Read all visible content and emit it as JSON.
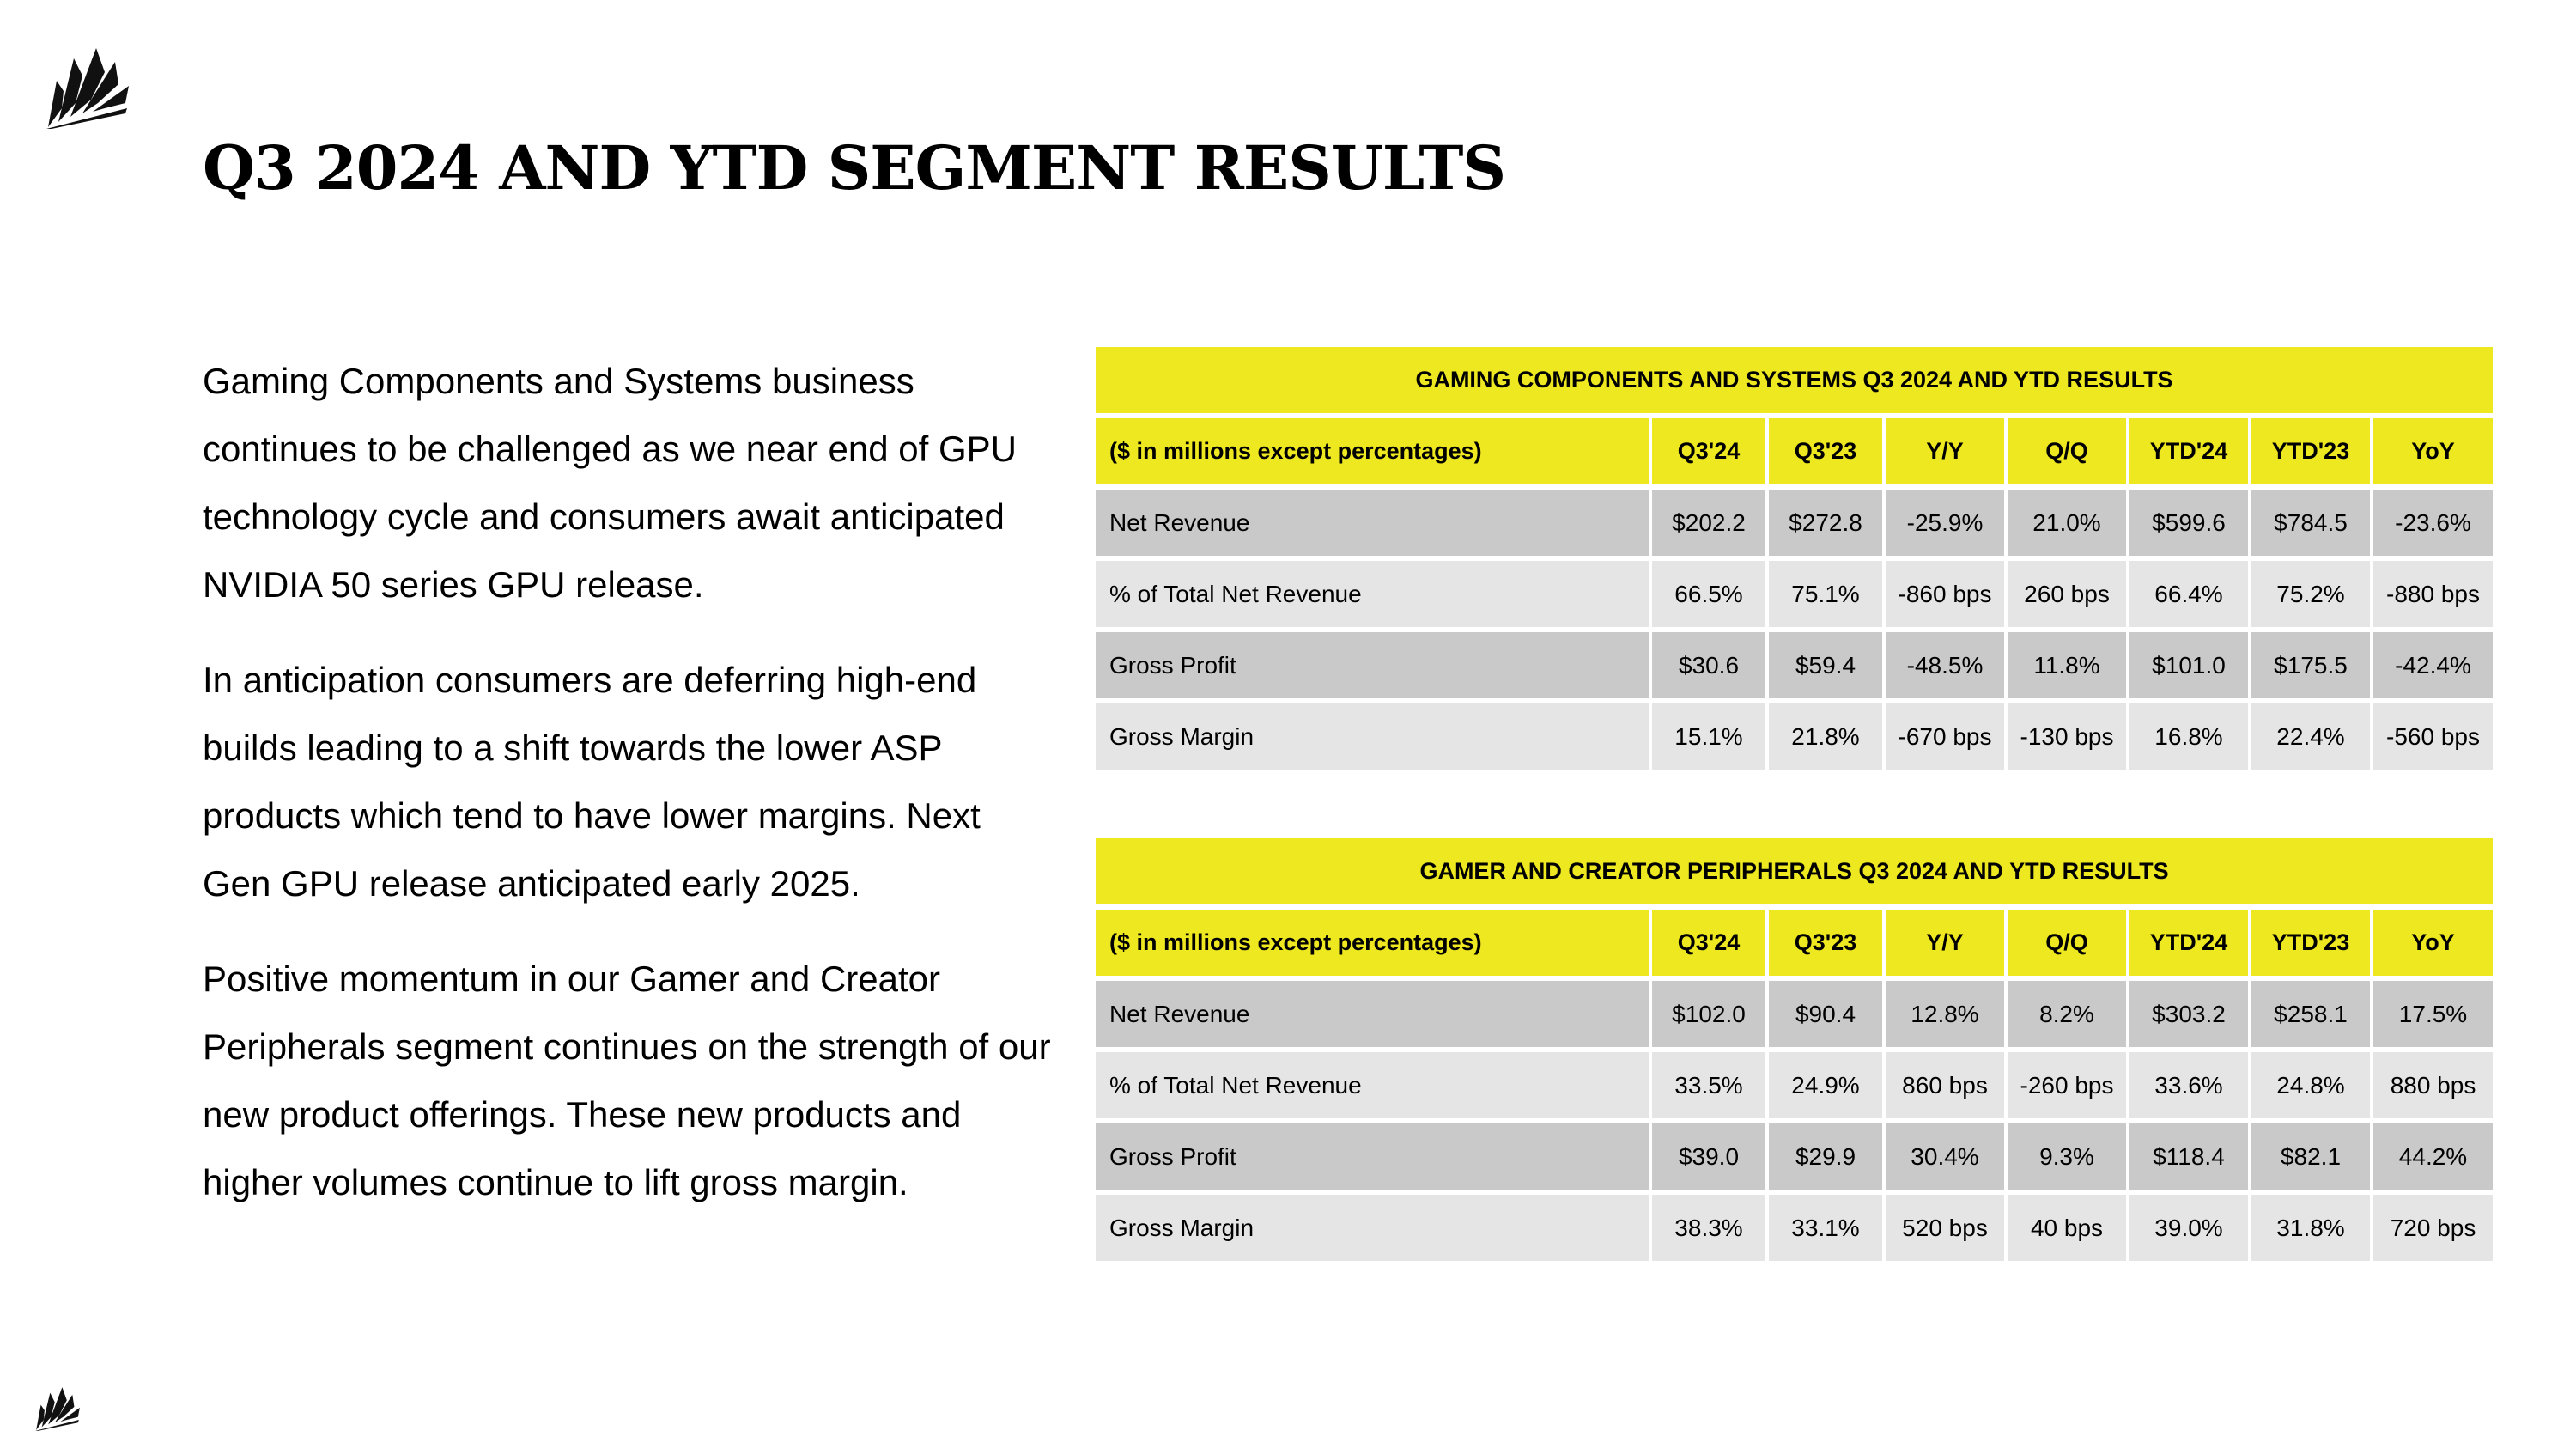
{
  "page": {
    "title": "Q3 2024 AND YTD SEGMENT RESULTS",
    "paragraphs": [
      "Gaming Components and Systems business continues to be challenged as we near end of GPU technology cycle and consumers await anticipated NVIDIA 50 series GPU release.",
      "In anticipation consumers are deferring high-end builds leading to a shift towards the lower ASP products which tend to have lower margins. Next Gen GPU release anticipated early 2025.",
      "Positive momentum in our Gamer and Creator Peripherals segment continues on the strength of our new product offerings. These new products and higher volumes continue to lift gross margin."
    ]
  },
  "tables": [
    {
      "title": "GAMING COMPONENTS AND SYSTEMS Q3 2024 AND YTD RESULTS",
      "headers": [
        "($ in millions except percentages)",
        "Q3'24",
        "Q3'23",
        "Y/Y",
        "Q/Q",
        "YTD'24",
        "YTD'23",
        "YoY"
      ],
      "rows": [
        [
          "Net Revenue",
          "$202.2",
          "$272.8",
          "-25.9%",
          "21.0%",
          "$599.6",
          "$784.5",
          "-23.6%"
        ],
        [
          "% of Total Net Revenue",
          "66.5%",
          "75.1%",
          "-860 bps",
          "260 bps",
          "66.4%",
          "75.2%",
          "-880 bps"
        ],
        [
          "Gross Profit",
          "$30.6",
          "$59.4",
          "-48.5%",
          "11.8%",
          "$101.0",
          "$175.5",
          "-42.4%"
        ],
        [
          "Gross Margin",
          "15.1%",
          "21.8%",
          "-670 bps",
          "-130 bps",
          "16.8%",
          "22.4%",
          "-560 bps"
        ]
      ]
    },
    {
      "title": "GAMER AND CREATOR PERIPHERALS Q3 2024 AND YTD RESULTS",
      "headers": [
        "($ in millions except percentages)",
        "Q3'24",
        "Q3'23",
        "Y/Y",
        "Q/Q",
        "YTD'24",
        "YTD'23",
        "YoY"
      ],
      "rows": [
        [
          "Net Revenue",
          "$102.0",
          "$90.4",
          "12.8%",
          "8.2%",
          "$303.2",
          "$258.1",
          "17.5%"
        ],
        [
          "% of Total Net Revenue",
          "33.5%",
          "24.9%",
          "860 bps",
          "-260 bps",
          "33.6%",
          "24.8%",
          "880 bps"
        ],
        [
          "Gross Profit",
          "$39.0",
          "$29.9",
          "30.4%",
          "9.3%",
          "$118.4",
          "$82.1",
          "44.2%"
        ],
        [
          "Gross Margin",
          "38.3%",
          "33.1%",
          "520 bps",
          "40 bps",
          "39.0%",
          "31.8%",
          "720 bps"
        ]
      ]
    }
  ],
  "colors": {
    "header_yellow": "#EEE820",
    "row_dark": "#C9C9C9",
    "row_light": "#E5E5E5"
  },
  "icons": [
    "sails-logo-icon"
  ]
}
